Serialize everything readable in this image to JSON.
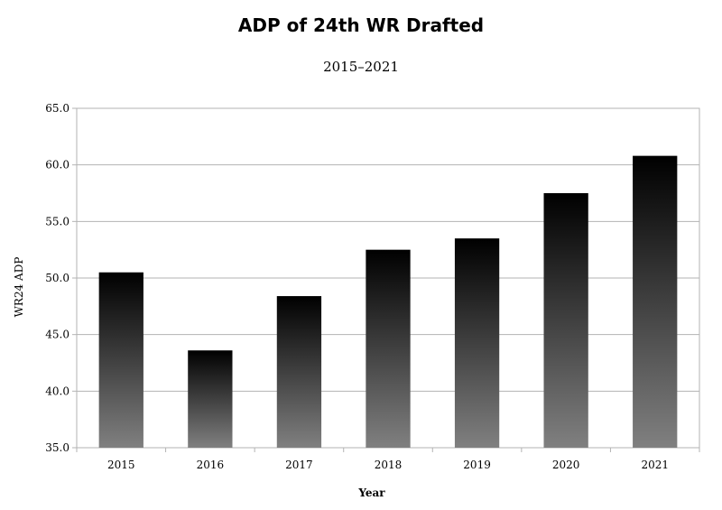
{
  "chart_data": {
    "type": "bar",
    "title": "ADP of 24th WR Drafted",
    "subtitle": "2015–2021",
    "xlabel": "Year",
    "ylabel": "WR24 ADP",
    "categories": [
      "2015",
      "2016",
      "2017",
      "2018",
      "2019",
      "2020",
      "2021"
    ],
    "values": [
      50.5,
      43.6,
      48.4,
      52.5,
      53.5,
      57.5,
      60.8
    ],
    "ylim": [
      35.0,
      65.0
    ],
    "yticks": [
      35.0,
      40.0,
      45.0,
      50.0,
      55.0,
      60.0,
      65.0
    ],
    "ytick_labels": [
      "35.0",
      "40.0",
      "45.0",
      "50.0",
      "55.0",
      "60.0",
      "65.0"
    ],
    "grid": true,
    "legend": "none",
    "bar_gradient": [
      "#000000",
      "#808080"
    ]
  }
}
